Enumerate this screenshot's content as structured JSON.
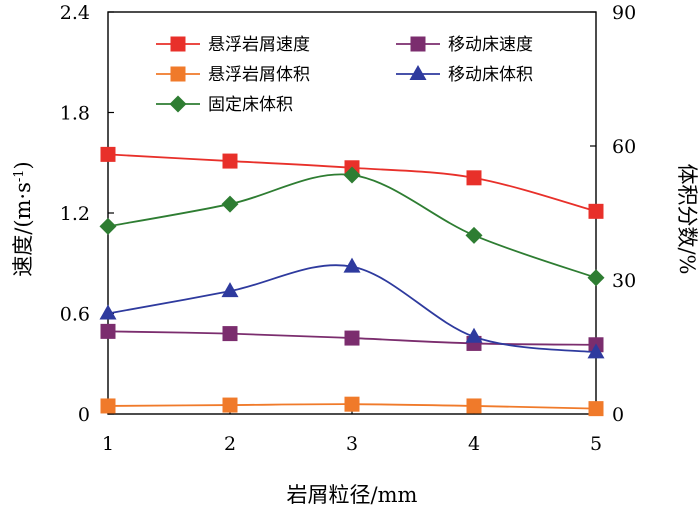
{
  "chart_data": {
    "type": "line",
    "x": [
      1,
      2,
      3,
      4,
      5
    ],
    "xlabel": "岩屑粒径/mm",
    "ylabel_left": "速度/(m·s",
    "ylabel_left_sup": "-1",
    "ylabel_left_close": ")",
    "ylabel_right": "体积分数/%",
    "xlim": [
      1,
      5
    ],
    "ylim_left": [
      0,
      2.4
    ],
    "ylim_right": [
      0,
      90
    ],
    "x_ticks": [
      "1",
      "2",
      "3",
      "4",
      "5"
    ],
    "y_left_ticks": [
      "0",
      "0.6",
      "1.2",
      "1.8",
      "2.4"
    ],
    "y_right_ticks": [
      "0",
      "30",
      "60",
      "90"
    ],
    "grid": false,
    "legend_placement": "top, two columns",
    "series": [
      {
        "name": "悬浮岩屑速度",
        "axis": "left",
        "color": "#e8302a",
        "marker": "square",
        "values": [
          1.55,
          1.51,
          1.47,
          1.41,
          1.21
        ]
      },
      {
        "name": "移动床速度",
        "axis": "right",
        "color": "#7b2d6e",
        "marker": "square",
        "values": [
          18.5,
          18.0,
          17.0,
          15.8,
          15.5
        ]
      },
      {
        "name": "悬浮岩屑体积",
        "axis": "right",
        "color": "#f07a2a",
        "marker": "square",
        "values": [
          1.8,
          2.0,
          2.2,
          1.8,
          1.2
        ]
      },
      {
        "name": "移动床体积",
        "axis": "right",
        "color": "#2e3a9e",
        "marker": "triangle",
        "values": [
          22.5,
          27.5,
          33.0,
          17.3,
          13.8
        ]
      },
      {
        "name": "固定床体积",
        "axis": "right",
        "color": "#2e7d32",
        "marker": "diamond",
        "values": [
          42.0,
          47.0,
          53.5,
          40.0,
          30.5
        ]
      }
    ]
  }
}
